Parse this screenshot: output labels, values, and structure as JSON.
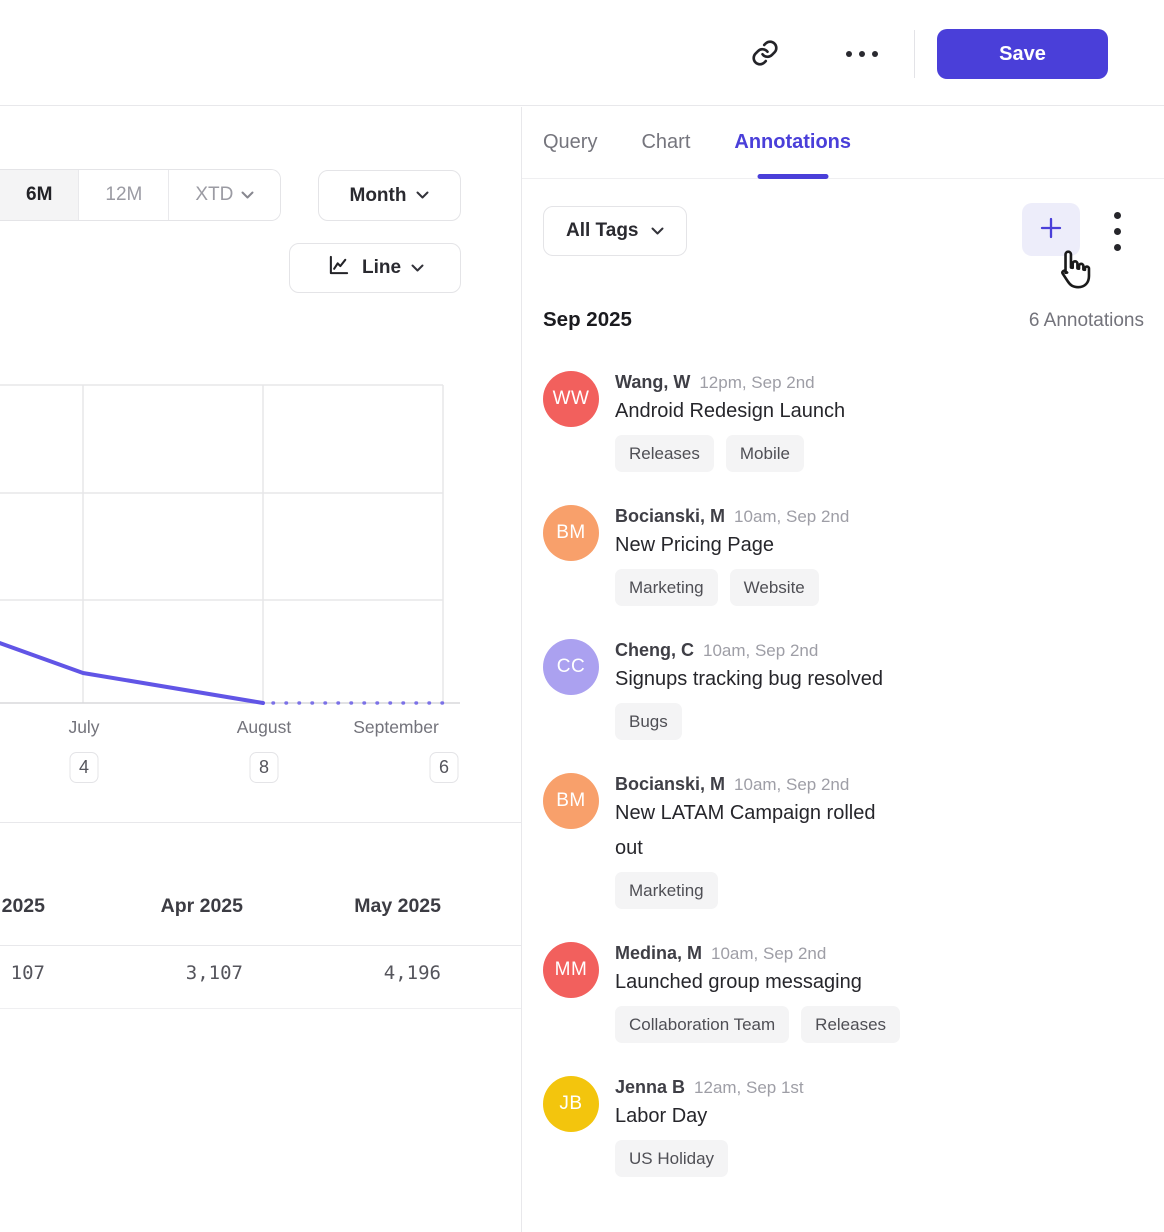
{
  "topbar": {
    "save_label": "Save"
  },
  "tabs": [
    {
      "label": "Query",
      "active": false
    },
    {
      "label": "Chart",
      "active": false
    },
    {
      "label": "Annotations",
      "active": true
    }
  ],
  "chart_controls": {
    "range_options": [
      "6M",
      "12M",
      "XTD"
    ],
    "active_range": "6M",
    "granularity": "Month",
    "chart_type": "Line"
  },
  "chart_data": {
    "type": "line",
    "x_tick_labels": [
      "July",
      "August",
      "September"
    ],
    "annotation_badge_counts": [
      "4",
      "8",
      "6"
    ],
    "y_axis": {
      "labels_visible": false,
      "gridlines_above_axis": 3
    },
    "legend": false,
    "grid": true,
    "series": [
      {
        "name": "metric (solid, partial months visible)",
        "style": "solid",
        "points": [
          {
            "x": "period-start",
            "y_grid_units": 0.56
          },
          {
            "x": "July",
            "y_grid_units": 0.28
          },
          {
            "x": "August",
            "y_grid_units": 0.0
          }
        ]
      },
      {
        "name": "projection (dotted)",
        "style": "dotted",
        "points": [
          {
            "x": "August",
            "y_grid_units": 0.0
          },
          {
            "x": "period-end",
            "y_grid_units": 0.0
          }
        ]
      }
    ]
  },
  "table": {
    "columns": [
      {
        "header": "2025",
        "value": "107"
      },
      {
        "header": "Apr 2025",
        "value": "3,107"
      },
      {
        "header": "May 2025",
        "value": "4,196"
      }
    ]
  },
  "annotations_panel": {
    "filter_label": "All Tags",
    "section_title": "Sep 2025",
    "count_label": "6 Annotations",
    "items": [
      {
        "initials": "WW",
        "avatar_color": "#F2605D",
        "author": "Wang, W",
        "time": "12pm, Sep 2nd",
        "title": "Android Redesign Launch",
        "tags": [
          "Releases",
          "Mobile"
        ]
      },
      {
        "initials": "BM",
        "avatar_color": "#F8A06B",
        "author": "Bocianski, M",
        "time": "10am, Sep 2nd",
        "title": "New Pricing Page",
        "tags": [
          "Marketing",
          "Website"
        ]
      },
      {
        "initials": "CC",
        "avatar_color": "#ABA1F0",
        "author": "Cheng, C",
        "time": "10am, Sep 2nd",
        "title": "Signups tracking bug resolved",
        "tags": [
          "Bugs"
        ]
      },
      {
        "initials": "BM",
        "avatar_color": "#F8A06B",
        "author": "Bocianski, M",
        "time": "10am, Sep 2nd",
        "title": "New LATAM Campaign rolled out",
        "tags": [
          "Marketing"
        ]
      },
      {
        "initials": "MM",
        "avatar_color": "#F2605D",
        "author": "Medina, M",
        "time": "10am, Sep 2nd",
        "title": "Launched group messaging",
        "tags": [
          "Collaboration Team",
          "Releases"
        ]
      },
      {
        "initials": "JB",
        "avatar_color": "#F3C50D",
        "author": "Jenna B",
        "time": "12am, Sep 1st",
        "title": "Labor Day",
        "tags": [
          "US Holiday"
        ]
      }
    ]
  },
  "colors": {
    "accent": "#4A3FD9",
    "chart_line": "#6155E6",
    "tag_background": "#F4F4F5",
    "plus_button_background": "#EDEDFA"
  }
}
